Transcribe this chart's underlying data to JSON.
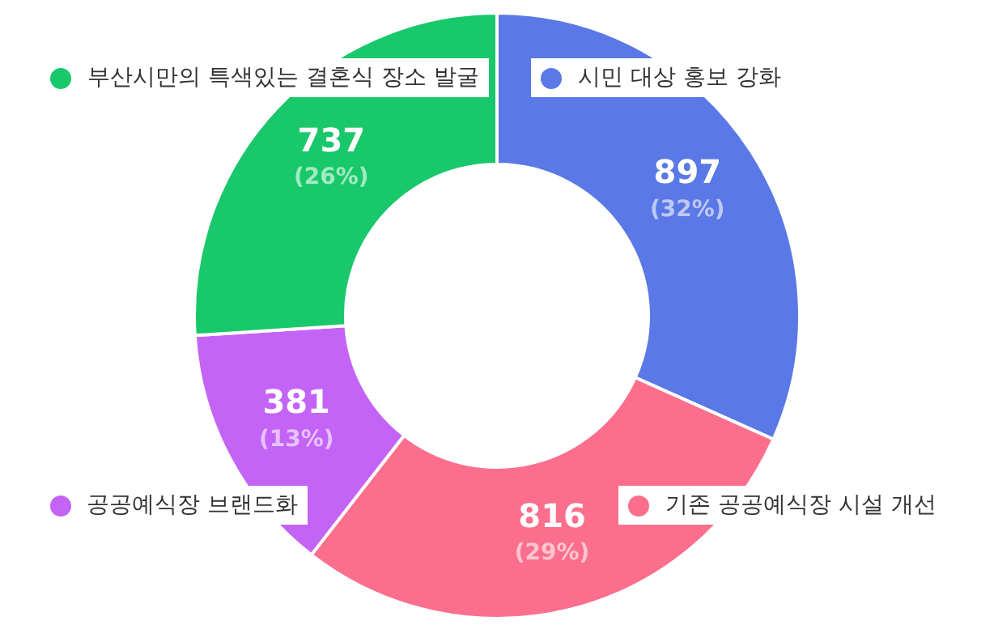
{
  "chart_data": {
    "type": "donut",
    "categories": [
      "시민 대상 홍보 강화",
      "기존 공공예식장 시설 개선",
      "공공예식장 브랜드화",
      "부산시만의 특색있는 결혼식 장소 발굴"
    ],
    "values": [
      897,
      816,
      381,
      737
    ],
    "legend": "top",
    "colors": [
      "#5a78e6",
      "#fb6f8c",
      "#c364f7",
      "#19c86a"
    ],
    "value_labels": [
      "897\n(32%)",
      "816\n(29%)",
      "381\n(13%)",
      "737\n(26%)"
    ]
  }
}
